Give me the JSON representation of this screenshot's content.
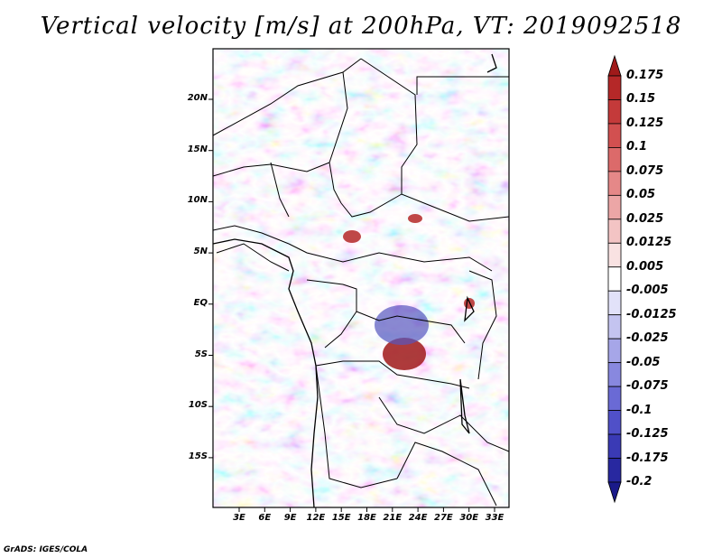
{
  "title": "Vertical velocity [m/s] at 200hPa, VT: 2019092518",
  "credit": "GrADS: IGES/COLA",
  "map": {
    "lat_ticks": [
      "20N",
      "15N",
      "10N",
      "5N",
      "EQ",
      "5S",
      "10S",
      "15S"
    ],
    "lon_ticks": [
      "3E",
      "6E",
      "9E",
      "12E",
      "15E",
      "18E",
      "21E",
      "24E",
      "27E",
      "30E",
      "33E"
    ]
  },
  "colorbar": {
    "labels": [
      "0.175",
      "0.15",
      "0.125",
      "0.1",
      "0.075",
      "0.05",
      "0.025",
      "0.0125",
      "0.005",
      "-0.005",
      "-0.0125",
      "-0.025",
      "-0.05",
      "-0.075",
      "-0.1",
      "-0.125",
      "-0.175",
      "-0.2"
    ],
    "colors": [
      "#a01a1a",
      "#b52828",
      "#c43a3a",
      "#d25050",
      "#dc6a6a",
      "#e58888",
      "#eca6a6",
      "#f3c4c4",
      "#f9e2e2",
      "#ffffff",
      "#e2e2f9",
      "#c4c4f0",
      "#a6a6e8",
      "#8888df",
      "#6a6ad5",
      "#5050c8",
      "#3a3ab5",
      "#2828a0",
      "#1a1a8a"
    ]
  }
}
